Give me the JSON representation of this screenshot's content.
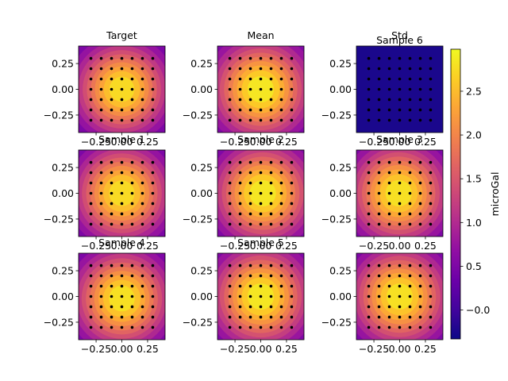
{
  "chart_data": {
    "type": "heatmap",
    "colormap": "plasma",
    "panels": [
      {
        "title": "Target",
        "kind": "field",
        "peak": 2.85,
        "decay": 5.5,
        "cx": 0.0,
        "cy": 0.0
      },
      {
        "title": "Mean",
        "kind": "field",
        "peak": 2.95,
        "decay": 5.0,
        "cx": 0.0,
        "cy": 0.0
      },
      {
        "title": "Std",
        "kind": "std",
        "value": -0.25,
        "overlap_title": "Sample 6"
      },
      {
        "title": "Sample 1",
        "kind": "field",
        "peak": 2.85,
        "decay": 5.3,
        "cx": 0.0,
        "cy": 0.0
      },
      {
        "title": "Sample 2",
        "kind": "field",
        "peak": 2.95,
        "decay": 5.0,
        "cx": 0.02,
        "cy": 0.0
      },
      {
        "title": "Sample 3",
        "kind": "field",
        "peak": 2.9,
        "decay": 5.0,
        "cx": -0.01,
        "cy": 0.0
      },
      {
        "title": "Sample 4",
        "kind": "field",
        "peak": 2.9,
        "decay": 5.2,
        "cx": 0.0,
        "cy": -0.02
      },
      {
        "title": "Sample 5",
        "kind": "field",
        "peak": 2.95,
        "decay": 5.0,
        "cx": 0.0,
        "cy": 0.0
      },
      {
        "title": "",
        "kind": "field",
        "peak": 2.9,
        "decay": 5.1,
        "cx": 0.0,
        "cy": 0.0
      }
    ],
    "xlim": [
      -0.42,
      0.42
    ],
    "ylim": [
      -0.42,
      0.42
    ],
    "xticks": [
      -0.25,
      0.0,
      0.25
    ],
    "yticks": [
      -0.25,
      0.0,
      0.25
    ],
    "xtick_labels": [
      "−0.25",
      "0.00",
      "0.25"
    ],
    "ytick_labels": [
      "−0.25",
      "0.00",
      "0.25"
    ],
    "stations": [
      -0.3,
      -0.2,
      -0.1,
      0.0,
      0.1,
      0.2,
      0.3
    ],
    "colorbar": {
      "label": "microGal",
      "min": -0.33,
      "max": 2.98,
      "ticks": [
        -0.0,
        0.5,
        1.0,
        1.5,
        2.0,
        2.5
      ],
      "tick_labels": [
        "−0.0",
        "0.5",
        "1.0",
        "1.5",
        "2.0",
        "2.5"
      ]
    }
  }
}
